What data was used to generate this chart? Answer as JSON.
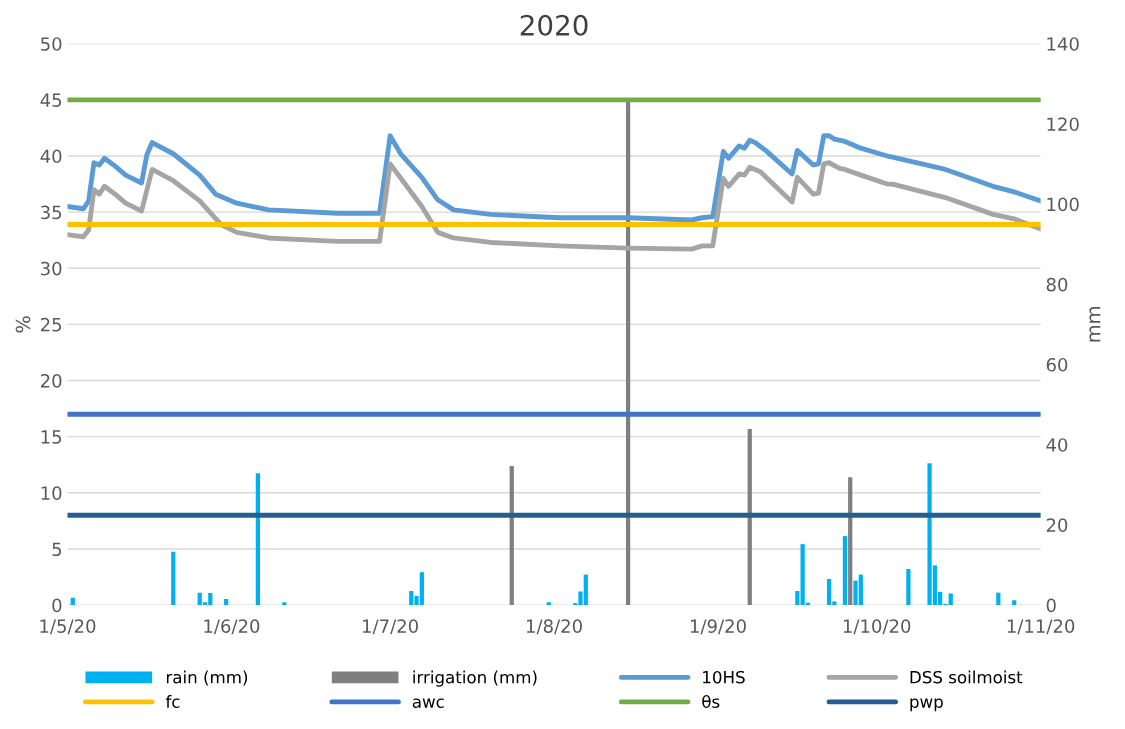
{
  "chart_data": {
    "type": "line",
    "title": "2020",
    "ylabel": "%",
    "y2label": "mm",
    "xlim": [
      "2020-05-01",
      "2020-11-01"
    ],
    "xticks": [
      {
        "value": "2020-05-01",
        "label": "1/5/20"
      },
      {
        "value": "2020-06-01",
        "label": "1/6/20"
      },
      {
        "value": "2020-07-01",
        "label": "1/7/20"
      },
      {
        "value": "2020-08-01",
        "label": "1/8/20"
      },
      {
        "value": "2020-09-01",
        "label": "1/9/20"
      },
      {
        "value": "2020-10-01",
        "label": "1/10/20"
      },
      {
        "value": "2020-11-01",
        "label": "1/11/20"
      }
    ],
    "ylim": [
      0,
      50
    ],
    "yticks": [
      0,
      5,
      10,
      15,
      20,
      25,
      30,
      35,
      40,
      45,
      50
    ],
    "y2lim": [
      0,
      140
    ],
    "y2ticks": [
      0,
      20,
      40,
      60,
      80,
      100,
      120,
      140
    ],
    "grid": "y",
    "legend": "bottom",
    "marker": "none",
    "line_style": "solid",
    "series": [
      {
        "name": "rain (mm)",
        "type": "bar",
        "axis": "y2",
        "color": "#00b0f0",
        "x": [
          "2020-05-02",
          "2020-05-21",
          "2020-05-26",
          "2020-05-27",
          "2020-05-28",
          "2020-05-31",
          "2020-06-06",
          "2020-06-11",
          "2020-07-05",
          "2020-07-06",
          "2020-07-07",
          "2020-07-31",
          "2020-08-05",
          "2020-08-06",
          "2020-08-07",
          "2020-09-16",
          "2020-09-17",
          "2020-09-18",
          "2020-09-22",
          "2020-09-23",
          "2020-09-25",
          "2020-09-27",
          "2020-09-28",
          "2020-10-07",
          "2020-10-11",
          "2020-10-12",
          "2020-10-13",
          "2020-10-14",
          "2020-10-15",
          "2020-10-24",
          "2020-10-27"
        ],
        "values": [
          1.8,
          13.3,
          3.1,
          0.7,
          3.0,
          1.5,
          32.9,
          0.7,
          3.5,
          2.3,
          8.2,
          0.7,
          0.5,
          3.4,
          7.6,
          3.5,
          15.2,
          0.6,
          6.5,
          0.9,
          17.2,
          6.1,
          7.6,
          9.0,
          35.4,
          9.9,
          3.3,
          0.3,
          2.9,
          3.1,
          1.2
        ]
      },
      {
        "name": "irrigation (mm)",
        "type": "bar",
        "axis": "y2",
        "color": "#7f7f7f",
        "x": [
          "2020-07-24",
          "2020-08-15",
          "2020-09-07",
          "2020-09-26"
        ],
        "values": [
          34.7,
          126,
          43.9,
          31.9
        ]
      },
      {
        "name": "10HS",
        "color": "#5b9bd5",
        "x": [
          "2020-05-01",
          "2020-05-04",
          "2020-05-05",
          "2020-05-06",
          "2020-05-07",
          "2020-05-08",
          "2020-05-10",
          "2020-05-12",
          "2020-05-15",
          "2020-05-16",
          "2020-05-17",
          "2020-05-21",
          "2020-05-26",
          "2020-05-29",
          "2020-06-02",
          "2020-06-08",
          "2020-06-21",
          "2020-06-29",
          "2020-07-01",
          "2020-07-03",
          "2020-07-07",
          "2020-07-10",
          "2020-07-13",
          "2020-07-20",
          "2020-08-02",
          "2020-08-15",
          "2020-08-27",
          "2020-08-29",
          "2020-08-31",
          "2020-09-02",
          "2020-09-03",
          "2020-09-05",
          "2020-09-06",
          "2020-09-07",
          "2020-09-08",
          "2020-09-10",
          "2020-09-15",
          "2020-09-16",
          "2020-09-19",
          "2020-09-20",
          "2020-09-21",
          "2020-09-22",
          "2020-09-23",
          "2020-09-25",
          "2020-09-28",
          "2020-10-03",
          "2020-10-04",
          "2020-10-14",
          "2020-10-23",
          "2020-10-27",
          "2020-11-01"
        ],
        "values": [
          35.5,
          35.3,
          36.0,
          39.4,
          39.2,
          39.8,
          39.1,
          38.3,
          37.6,
          40.1,
          41.2,
          40.2,
          38.3,
          36.6,
          35.8,
          35.2,
          34.9,
          34.9,
          41.8,
          40.2,
          38.1,
          36.1,
          35.2,
          34.8,
          34.5,
          34.5,
          34.3,
          34.5,
          34.6,
          40.4,
          39.8,
          40.9,
          40.7,
          41.4,
          41.2,
          40.5,
          38.4,
          40.5,
          39.2,
          39.3,
          41.8,
          41.8,
          41.5,
          41.3,
          40.7,
          40.0,
          39.9,
          38.8,
          37.3,
          36.8,
          36.0
        ]
      },
      {
        "name": "DSS soilmoist",
        "color": "#a5a5a5",
        "x": [
          "2020-05-01",
          "2020-05-04",
          "2020-05-05",
          "2020-05-06",
          "2020-05-07",
          "2020-05-08",
          "2020-05-10",
          "2020-05-12",
          "2020-05-15",
          "2020-05-17",
          "2020-05-21",
          "2020-05-26",
          "2020-05-30",
          "2020-06-02",
          "2020-06-08",
          "2020-06-21",
          "2020-06-29",
          "2020-07-01",
          "2020-07-07",
          "2020-07-10",
          "2020-07-13",
          "2020-07-20",
          "2020-08-02",
          "2020-08-15",
          "2020-08-27",
          "2020-08-29",
          "2020-08-31",
          "2020-09-02",
          "2020-09-03",
          "2020-09-05",
          "2020-09-06",
          "2020-09-07",
          "2020-09-09",
          "2020-09-15",
          "2020-09-16",
          "2020-09-19",
          "2020-09-20",
          "2020-09-21",
          "2020-09-22",
          "2020-09-24",
          "2020-09-25",
          "2020-09-28",
          "2020-10-03",
          "2020-10-04",
          "2020-10-14",
          "2020-10-23",
          "2020-10-27",
          "2020-11-01"
        ],
        "values": [
          33.0,
          32.8,
          33.4,
          37.0,
          36.6,
          37.3,
          36.6,
          35.8,
          35.1,
          38.8,
          37.8,
          36.0,
          33.9,
          33.2,
          32.7,
          32.4,
          32.4,
          39.3,
          35.5,
          33.2,
          32.7,
          32.3,
          32.0,
          31.8,
          31.7,
          32.0,
          32.0,
          38.0,
          37.3,
          38.4,
          38.3,
          39.0,
          38.6,
          35.9,
          38.1,
          36.6,
          36.7,
          39.3,
          39.4,
          38.9,
          38.8,
          38.3,
          37.5,
          37.5,
          36.3,
          34.8,
          34.4,
          33.5
        ]
      },
      {
        "name": "fc",
        "color": "#ffc000",
        "x": [
          "2020-05-01",
          "2020-11-01"
        ],
        "values": [
          33.9,
          33.9
        ]
      },
      {
        "name": "awc",
        "color": "#4472c4",
        "x": [
          "2020-05-01",
          "2020-11-01"
        ],
        "values": [
          17,
          17
        ]
      },
      {
        "name": "θs",
        "color": "#70ad47",
        "x": [
          "2020-05-01",
          "2020-11-01"
        ],
        "values": [
          45,
          45
        ]
      },
      {
        "name": "pwp",
        "color": "#255e91",
        "x": [
          "2020-05-01",
          "2020-11-01"
        ],
        "values": [
          8,
          8
        ]
      }
    ]
  }
}
